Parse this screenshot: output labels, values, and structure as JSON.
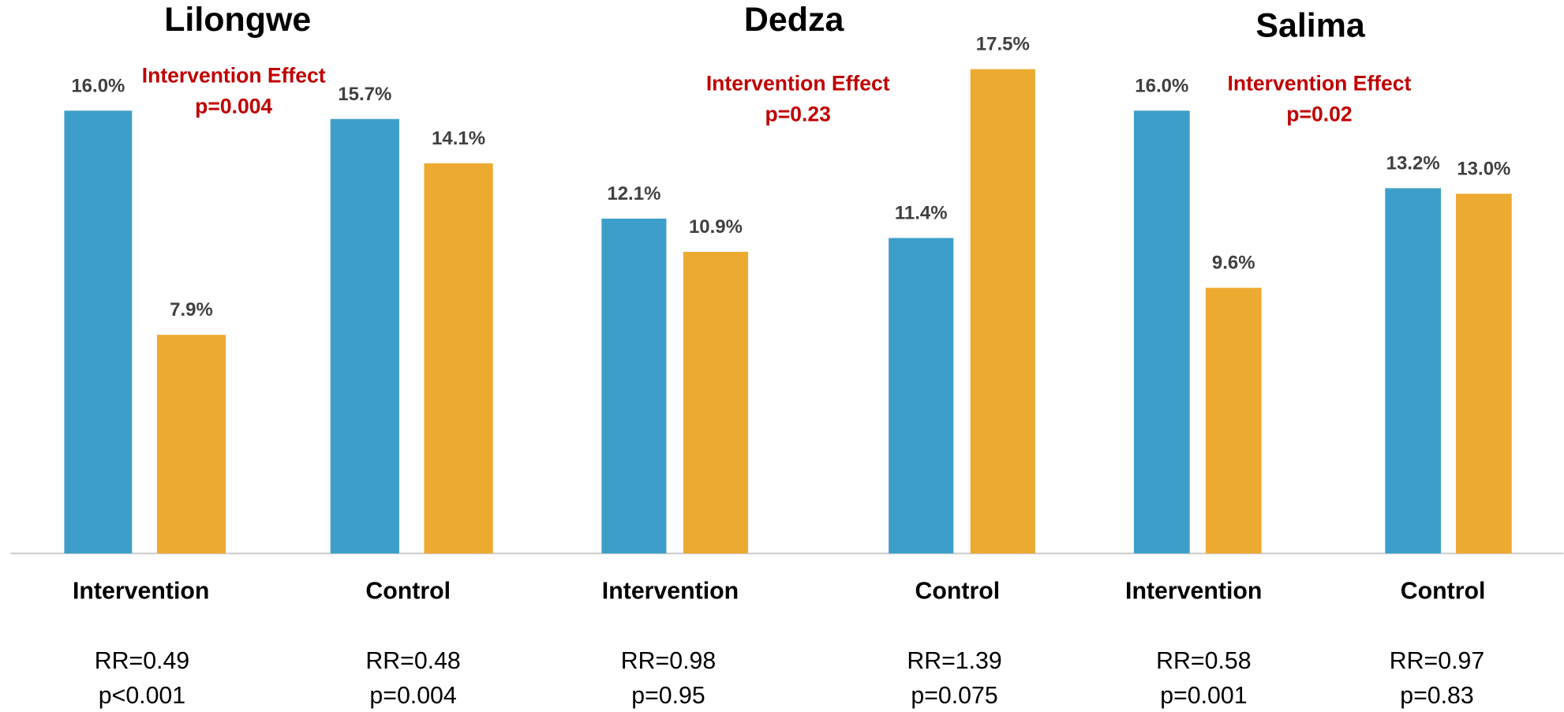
{
  "chart_data": [
    {
      "type": "bar",
      "title": "Lilongwe",
      "categories": [
        "Intervention",
        "Control"
      ],
      "series": [
        {
          "color": "#3d9fc9",
          "values": [
            16.0,
            15.7
          ],
          "value_labels": [
            "16.0%",
            "15.7%"
          ]
        },
        {
          "color": "#ecaa31",
          "values": [
            7.9,
            14.1
          ],
          "value_labels": [
            "7.9%",
            "14.1%"
          ]
        }
      ],
      "annotation": [
        "Intervention Effect",
        "p=0.004"
      ],
      "rr_labels": [
        [
          "RR=0.49",
          "p<0.001"
        ],
        [
          "RR=0.48",
          "p=0.004"
        ]
      ],
      "ylim": [
        0,
        20
      ]
    },
    {
      "type": "bar",
      "title": "Dedza",
      "categories": [
        "Intervention",
        "Control"
      ],
      "series": [
        {
          "color": "#3d9fc9",
          "values": [
            12.1,
            11.4
          ],
          "value_labels": [
            "12.1%",
            "11.4%"
          ]
        },
        {
          "color": "#ecaa31",
          "values": [
            10.9,
            17.5
          ],
          "value_labels": [
            "10.9%",
            "17.5%"
          ]
        }
      ],
      "annotation": [
        "Intervention Effect",
        "p=0.23"
      ],
      "rr_labels": [
        [
          "RR=0.98",
          "p=0.95"
        ],
        [
          "RR=1.39",
          "p=0.075"
        ]
      ],
      "ylim": [
        0,
        20
      ]
    },
    {
      "type": "bar",
      "title": "Salima",
      "categories": [
        "Intervention",
        "Control"
      ],
      "series": [
        {
          "color": "#3d9fc9",
          "values": [
            16.0,
            13.2
          ],
          "value_labels": [
            "16.0%",
            "13.2%"
          ]
        },
        {
          "color": "#ecaa31",
          "values": [
            9.6,
            13.0
          ],
          "value_labels": [
            "9.6%",
            "13.0%"
          ]
        }
      ],
      "annotation": [
        "Intervention Effect",
        "p=0.02"
      ],
      "rr_labels": [
        [
          "RR=0.58",
          "p=0.001"
        ],
        [
          "RR=0.97",
          "p=0.83"
        ]
      ],
      "ylim": [
        0,
        20
      ]
    }
  ]
}
